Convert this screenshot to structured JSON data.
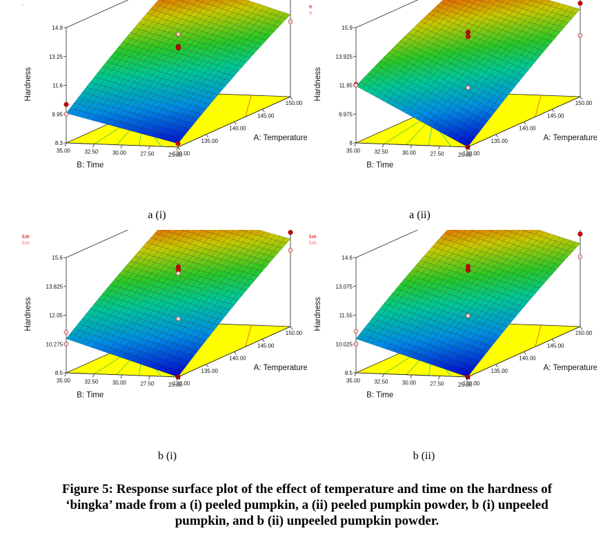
{
  "figure": {
    "caption_lines": [
      "Figure 5: Response surface plot of the effect of temperature and time on the hardness of",
      "‘bingka’ made from a (i) peeled pumpkin, a (ii) peeled pumpkin powder, b (i) unpeeled",
      "pumpkin, and b (ii) unpeeled pumpkin powder."
    ]
  },
  "chart_data": [
    {
      "type": "surface",
      "panel_label": "a (i)",
      "legend_fragment": [
        "'"
      ],
      "zlabel": "Hardness",
      "xlabel": "A: Temperature",
      "ylabel": "B: Time",
      "zticks": [
        "8.3",
        "9.95",
        "11.6",
        "13.25",
        "14.9"
      ],
      "zlim": [
        8.3,
        14.9
      ],
      "xticks": [
        "130.00",
        "135.00",
        "140.00",
        "145.00",
        "150.00"
      ],
      "xlim": [
        130,
        150
      ],
      "yticks": [
        "25.00",
        "27.50",
        "30.00",
        "32.50",
        "35.00"
      ],
      "ylim": [
        25,
        35
      ],
      "surface_corners": {
        "T130_t25": 8.5,
        "T150_t25": 13.0,
        "T130_t35": 10.0,
        "T150_t35": 14.9
      },
      "points": [
        {
          "T": 130,
          "t": 25,
          "hardness": 8.5,
          "style": "filled"
        },
        {
          "T": 140,
          "t": 30,
          "hardness": 12.5,
          "style": "filled"
        },
        {
          "T": 140,
          "t": 30,
          "hardness": 12.4,
          "style": "filled"
        },
        {
          "T": 150,
          "t": 35,
          "hardness": 14.9,
          "style": "filled"
        },
        {
          "T": 130,
          "t": 35,
          "hardness": 10.5,
          "style": "filled"
        },
        {
          "T": 150,
          "t": 25,
          "hardness": 14.2,
          "style": "filled"
        },
        {
          "T": 130,
          "t": 35,
          "hardness": 9.95,
          "style": "open"
        },
        {
          "T": 150,
          "t": 25,
          "hardness": 12.6,
          "style": "open"
        },
        {
          "T": 140,
          "t": 30,
          "hardness": 13.2,
          "style": "open"
        }
      ]
    },
    {
      "type": "surface",
      "panel_label": "a (ii)",
      "legend_fragment": [
        "e",
        "e"
      ],
      "zlabel": "Hardness",
      "xlabel": "A: Temperature",
      "ylabel": "B: Time",
      "zticks": [
        "8",
        "9.975",
        "11.95",
        "13.925",
        "15.9"
      ],
      "zlim": [
        8,
        15.9
      ],
      "xticks": [
        "130.00",
        "135.00",
        "140.00",
        "145.00",
        "150.00"
      ],
      "xlim": [
        130,
        150
      ],
      "yticks": [
        "25.00",
        "27.50",
        "30.00",
        "32.50",
        "35.00"
      ],
      "ylim": [
        25,
        35
      ],
      "surface_corners": {
        "T130_t25": 8.0,
        "T150_t25": 14.0,
        "T130_t35": 11.9,
        "T150_t35": 15.9
      },
      "points": [
        {
          "T": 130,
          "t": 25,
          "hardness": 8.0,
          "style": "filled"
        },
        {
          "T": 140,
          "t": 30,
          "hardness": 14.0,
          "style": "filled"
        },
        {
          "T": 140,
          "t": 30,
          "hardness": 13.7,
          "style": "filled"
        },
        {
          "T": 150,
          "t": 35,
          "hardness": 15.9,
          "style": "open"
        },
        {
          "T": 130,
          "t": 35,
          "hardness": 12.0,
          "style": "filled"
        },
        {
          "T": 150,
          "t": 25,
          "hardness": 14.4,
          "style": "filled"
        },
        {
          "T": 130,
          "t": 35,
          "hardness": 11.95,
          "style": "open"
        },
        {
          "T": 150,
          "t": 25,
          "hardness": 12.2,
          "style": "open"
        },
        {
          "T": 140,
          "t": 30,
          "hardness": 10.2,
          "style": "open"
        }
      ]
    },
    {
      "type": "surface",
      "panel_label": "b (i)",
      "legend_fragment": [
        "lue",
        "lue"
      ],
      "zlabel": "Hardness",
      "xlabel": "A: Temperature",
      "ylabel": "B: Time",
      "zticks": [
        "8.5",
        "10.275",
        "12.05",
        "13.825",
        "15.6"
      ],
      "zlim": [
        8.5,
        15.6
      ],
      "xticks": [
        "130.00",
        "135.00",
        "140.00",
        "145.00",
        "150.00"
      ],
      "xlim": [
        130,
        150
      ],
      "yticks": [
        "25.00",
        "27.50",
        "30.00",
        "32.50",
        "35.00"
      ],
      "ylim": [
        25,
        35
      ],
      "surface_corners": {
        "T130_t25": 8.5,
        "T150_t25": 13.9,
        "T130_t35": 10.6,
        "T150_t35": 15.6
      },
      "points": [
        {
          "T": 130,
          "t": 25,
          "hardness": 8.5,
          "style": "filled"
        },
        {
          "T": 140,
          "t": 30,
          "hardness": 13.6,
          "style": "filled"
        },
        {
          "T": 140,
          "t": 30,
          "hardness": 13.4,
          "style": "filled"
        },
        {
          "T": 150,
          "t": 35,
          "hardness": 15.6,
          "style": "open"
        },
        {
          "T": 130,
          "t": 35,
          "hardness": 11.0,
          "style": "open"
        },
        {
          "T": 150,
          "t": 25,
          "hardness": 14.3,
          "style": "filled"
        },
        {
          "T": 130,
          "t": 35,
          "hardness": 10.275,
          "style": "open"
        },
        {
          "T": 150,
          "t": 25,
          "hardness": 13.2,
          "style": "open"
        },
        {
          "T": 140,
          "t": 30,
          "hardness": 10.4,
          "style": "open"
        },
        {
          "T": 140,
          "t": 30,
          "hardness": 13.2,
          "style": "open"
        }
      ]
    },
    {
      "type": "surface",
      "panel_label": "b (ii)",
      "legend_fragment": [
        "lue",
        "lue"
      ],
      "zlabel": "Hardness",
      "xlabel": "A: Temperature",
      "ylabel": "B: Time",
      "zticks": [
        "8.5",
        "10.025",
        "11.55",
        "13.075",
        "14.6"
      ],
      "zlim": [
        8.5,
        14.6
      ],
      "xticks": [
        "130.00",
        "135.00",
        "140.00",
        "145.00",
        "150.00"
      ],
      "xlim": [
        130,
        150
      ],
      "yticks": [
        "25.00",
        "27.50",
        "30.00",
        "32.50",
        "35.00"
      ],
      "ylim": [
        25,
        35
      ],
      "surface_corners": {
        "T130_t25": 8.5,
        "T150_t25": 12.9,
        "T130_t35": 10.3,
        "T150_t35": 14.6
      },
      "points": [
        {
          "T": 130,
          "t": 25,
          "hardness": 8.5,
          "style": "filled"
        },
        {
          "T": 140,
          "t": 30,
          "hardness": 12.9,
          "style": "filled"
        },
        {
          "T": 140,
          "t": 30,
          "hardness": 12.7,
          "style": "filled"
        },
        {
          "T": 150,
          "t": 35,
          "hardness": 14.6,
          "style": "open"
        },
        {
          "T": 130,
          "t": 35,
          "hardness": 10.7,
          "style": "open"
        },
        {
          "T": 150,
          "t": 25,
          "hardness": 13.4,
          "style": "filled"
        },
        {
          "T": 130,
          "t": 35,
          "hardness": 10.025,
          "style": "open"
        },
        {
          "T": 150,
          "t": 25,
          "hardness": 12.2,
          "style": "open"
        },
        {
          "T": 140,
          "t": 30,
          "hardness": 10.3,
          "style": "open"
        }
      ]
    }
  ]
}
